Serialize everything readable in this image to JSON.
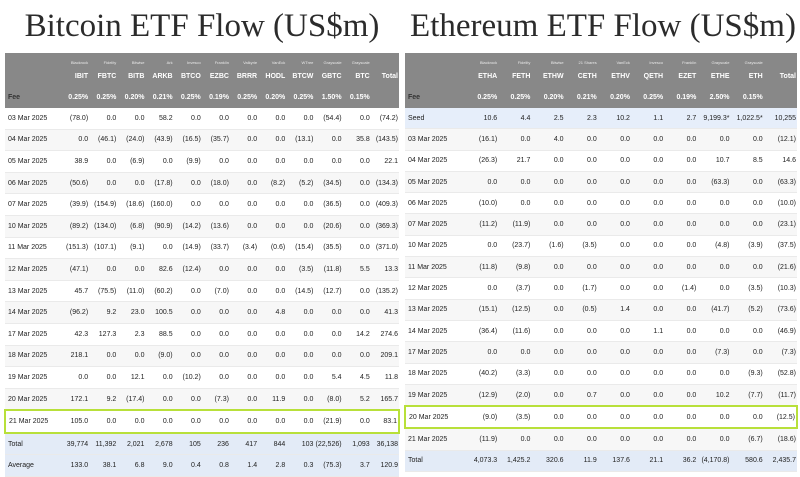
{
  "btc": {
    "title": "Bitcoin ETF Flow (US$m)",
    "issuers": [
      "Blackrock",
      "Fidelity",
      "Bitwise",
      "Ark",
      "Invesco",
      "Franklin",
      "Valkyrie",
      "VanEck",
      "WTree",
      "Grayscale",
      "Grayscale",
      ""
    ],
    "tickers": [
      "IBIT",
      "FBTC",
      "BITB",
      "ARKB",
      "BTCO",
      "EZBC",
      "BRRR",
      "HODL",
      "BTCW",
      "GBTC",
      "BTC",
      "Total"
    ],
    "fee": {
      "label": "Fee",
      "values": [
        "0.25%",
        "0.25%",
        "0.20%",
        "0.21%",
        "0.25%",
        "0.19%",
        "0.25%",
        "0.20%",
        "0.25%",
        "1.50%",
        "0.15%",
        ""
      ]
    },
    "rows": [
      {
        "date": "03 Mar 2025",
        "values": [
          "(78.0)",
          "0.0",
          "0.0",
          "58.2",
          "0.0",
          "0.0",
          "0.0",
          "0.0",
          "0.0",
          "(54.4)",
          "0.0",
          "(74.2)"
        ]
      },
      {
        "date": "04 Mar 2025",
        "values": [
          "0.0",
          "(46.1)",
          "(24.0)",
          "(43.9)",
          "(16.5)",
          "(35.7)",
          "0.0",
          "0.0",
          "(13.1)",
          "0.0",
          "35.8",
          "(143.5)"
        ]
      },
      {
        "date": "05 Mar 2025",
        "values": [
          "38.9",
          "0.0",
          "(6.9)",
          "0.0",
          "(9.9)",
          "0.0",
          "0.0",
          "0.0",
          "0.0",
          "0.0",
          "0.0",
          "22.1"
        ]
      },
      {
        "date": "06 Mar 2025",
        "values": [
          "(50.6)",
          "0.0",
          "0.0",
          "(17.8)",
          "0.0",
          "(18.0)",
          "0.0",
          "(8.2)",
          "(5.2)",
          "(34.5)",
          "0.0",
          "(134.3)"
        ]
      },
      {
        "date": "07 Mar 2025",
        "values": [
          "(39.9)",
          "(154.9)",
          "(18.6)",
          "(160.0)",
          "0.0",
          "0.0",
          "0.0",
          "0.0",
          "0.0",
          "(36.5)",
          "0.0",
          "(409.3)"
        ]
      },
      {
        "date": "10 Mar 2025",
        "values": [
          "(89.2)",
          "(134.0)",
          "(6.8)",
          "(90.9)",
          "(14.2)",
          "(13.6)",
          "0.0",
          "0.0",
          "0.0",
          "(20.6)",
          "0.0",
          "(369.3)"
        ]
      },
      {
        "date": "11 Mar 2025",
        "values": [
          "(151.3)",
          "(107.1)",
          "(9.1)",
          "0.0",
          "(14.9)",
          "(33.7)",
          "(3.4)",
          "(0.6)",
          "(15.4)",
          "(35.5)",
          "0.0",
          "(371.0)"
        ]
      },
      {
        "date": "12 Mar 2025",
        "values": [
          "(47.1)",
          "0.0",
          "0.0",
          "82.6",
          "(12.4)",
          "0.0",
          "0.0",
          "0.0",
          "(3.5)",
          "(11.8)",
          "5.5",
          "13.3"
        ]
      },
      {
        "date": "13 Mar 2025",
        "values": [
          "45.7",
          "(75.5)",
          "(11.0)",
          "(60.2)",
          "0.0",
          "(7.0)",
          "0.0",
          "0.0",
          "(14.5)",
          "(12.7)",
          "0.0",
          "(135.2)"
        ]
      },
      {
        "date": "14 Mar 2025",
        "values": [
          "(96.2)",
          "9.2",
          "23.0",
          "100.5",
          "0.0",
          "0.0",
          "0.0",
          "4.8",
          "0.0",
          "0.0",
          "0.0",
          "41.3"
        ]
      },
      {
        "date": "17 Mar 2025",
        "values": [
          "42.3",
          "127.3",
          "2.3",
          "88.5",
          "0.0",
          "0.0",
          "0.0",
          "0.0",
          "0.0",
          "0.0",
          "14.2",
          "274.6"
        ]
      },
      {
        "date": "18 Mar 2025",
        "values": [
          "218.1",
          "0.0",
          "0.0",
          "(9.0)",
          "0.0",
          "0.0",
          "0.0",
          "0.0",
          "0.0",
          "0.0",
          "0.0",
          "209.1"
        ]
      },
      {
        "date": "19 Mar 2025",
        "values": [
          "0.0",
          "0.0",
          "12.1",
          "0.0",
          "(10.2)",
          "0.0",
          "0.0",
          "0.0",
          "0.0",
          "5.4",
          "4.5",
          "11.8"
        ]
      },
      {
        "date": "20 Mar 2025",
        "values": [
          "172.1",
          "9.2",
          "(17.4)",
          "0.0",
          "0.0",
          "(7.3)",
          "0.0",
          "11.9",
          "0.0",
          "(8.0)",
          "5.2",
          "165.7"
        ]
      },
      {
        "date": "21 Mar 2025",
        "values": [
          "105.0",
          "0.0",
          "0.0",
          "0.0",
          "0.0",
          "0.0",
          "0.0",
          "0.0",
          "0.0",
          "(21.9)",
          "0.0",
          "83.1"
        ]
      },
      {
        "date": "Total",
        "values": [
          "39,774",
          "11,392",
          "2,021",
          "2,678",
          "105",
          "236",
          "417",
          "844",
          "103",
          "(22,526)",
          "1,093",
          "36,138"
        ]
      },
      {
        "date": "Average",
        "values": [
          "133.0",
          "38.1",
          "6.8",
          "9.0",
          "0.4",
          "0.8",
          "1.4",
          "2.8",
          "0.3",
          "(75.3)",
          "3.7",
          "120.9"
        ]
      }
    ],
    "highlight_date": "21 Mar 2025"
  },
  "eth": {
    "title": "Ethereum ETF Flow (US$m)",
    "issuers": [
      "Blackrock",
      "Fidelity",
      "Bitwise",
      "21 Shares",
      "VanEck",
      "Invesco",
      "Franklin",
      "Grayscale",
      "Grayscale",
      ""
    ],
    "tickers": [
      "ETHA",
      "FETH",
      "ETHW",
      "CETH",
      "ETHV",
      "QETH",
      "EZET",
      "ETHE",
      "ETH",
      "Total"
    ],
    "fee": {
      "label": "Fee",
      "values": [
        "0.25%",
        "0.25%",
        "0.20%",
        "0.21%",
        "0.20%",
        "0.25%",
        "0.19%",
        "2.50%",
        "0.15%",
        ""
      ]
    },
    "seed": {
      "date": "Seed",
      "values": [
        "10.6",
        "4.4",
        "2.5",
        "2.3",
        "10.2",
        "1.1",
        "2.7",
        "9,199.3*",
        "1,022.5*",
        "10,255"
      ]
    },
    "rows": [
      {
        "date": "03 Mar 2025",
        "values": [
          "(16.1)",
          "0.0",
          "4.0",
          "0.0",
          "0.0",
          "0.0",
          "0.0",
          "0.0",
          "0.0",
          "(12.1)"
        ]
      },
      {
        "date": "04 Mar 2025",
        "values": [
          "(26.3)",
          "21.7",
          "0.0",
          "0.0",
          "0.0",
          "0.0",
          "0.0",
          "10.7",
          "8.5",
          "14.6"
        ]
      },
      {
        "date": "05 Mar 2025",
        "values": [
          "0.0",
          "0.0",
          "0.0",
          "0.0",
          "0.0",
          "0.0",
          "0.0",
          "(63.3)",
          "0.0",
          "(63.3)"
        ]
      },
      {
        "date": "06 Mar 2025",
        "values": [
          "(10.0)",
          "0.0",
          "0.0",
          "0.0",
          "0.0",
          "0.0",
          "0.0",
          "0.0",
          "0.0",
          "(10.0)"
        ]
      },
      {
        "date": "07 Mar 2025",
        "values": [
          "(11.2)",
          "(11.9)",
          "0.0",
          "0.0",
          "0.0",
          "0.0",
          "0.0",
          "0.0",
          "0.0",
          "(23.1)"
        ]
      },
      {
        "date": "10 Mar 2025",
        "values": [
          "0.0",
          "(23.7)",
          "(1.6)",
          "(3.5)",
          "0.0",
          "0.0",
          "0.0",
          "(4.8)",
          "(3.9)",
          "(37.5)"
        ]
      },
      {
        "date": "11 Mar 2025",
        "values": [
          "(11.8)",
          "(9.8)",
          "0.0",
          "0.0",
          "0.0",
          "0.0",
          "0.0",
          "0.0",
          "0.0",
          "(21.6)"
        ]
      },
      {
        "date": "12 Mar 2025",
        "values": [
          "0.0",
          "(3.7)",
          "0.0",
          "(1.7)",
          "0.0",
          "0.0",
          "(1.4)",
          "0.0",
          "(3.5)",
          "(10.3)"
        ]
      },
      {
        "date": "13 Mar 2025",
        "values": [
          "(15.1)",
          "(12.5)",
          "0.0",
          "(0.5)",
          "1.4",
          "0.0",
          "0.0",
          "(41.7)",
          "(5.2)",
          "(73.6)"
        ]
      },
      {
        "date": "14 Mar 2025",
        "values": [
          "(36.4)",
          "(11.6)",
          "0.0",
          "0.0",
          "0.0",
          "1.1",
          "0.0",
          "0.0",
          "0.0",
          "(46.9)"
        ]
      },
      {
        "date": "17 Mar 2025",
        "values": [
          "0.0",
          "0.0",
          "0.0",
          "0.0",
          "0.0",
          "0.0",
          "0.0",
          "(7.3)",
          "0.0",
          "(7.3)"
        ]
      },
      {
        "date": "18 Mar 2025",
        "values": [
          "(40.2)",
          "(3.3)",
          "0.0",
          "0.0",
          "0.0",
          "0.0",
          "0.0",
          "0.0",
          "(9.3)",
          "(52.8)"
        ]
      },
      {
        "date": "19 Mar 2025",
        "values": [
          "(12.9)",
          "(2.0)",
          "0.0",
          "0.7",
          "0.0",
          "0.0",
          "0.0",
          "10.2",
          "(7.7)",
          "(11.7)"
        ]
      },
      {
        "date": "20 Mar 2025",
        "values": [
          "(9.0)",
          "(3.5)",
          "0.0",
          "0.0",
          "0.0",
          "0.0",
          "0.0",
          "0.0",
          "0.0",
          "(12.5)"
        ]
      },
      {
        "date": "21 Mar 2025",
        "values": [
          "(11.9)",
          "0.0",
          "0.0",
          "0.0",
          "0.0",
          "0.0",
          "0.0",
          "0.0",
          "(6.7)",
          "(18.6)"
        ]
      },
      {
        "date": "Total",
        "values": [
          "4,073.3",
          "1,425.2",
          "320.6",
          "11.9",
          "137.6",
          "21.1",
          "36.2",
          "(4,170.8)",
          "580.6",
          "2,435.7"
        ]
      }
    ],
    "highlight_date": "20 Mar 2025"
  },
  "colors": {
    "header_gray": "#888888",
    "negative_red": "#e0332b",
    "highlight_green": "#b8e03a",
    "summary_blue": "#e3ebf7"
  }
}
